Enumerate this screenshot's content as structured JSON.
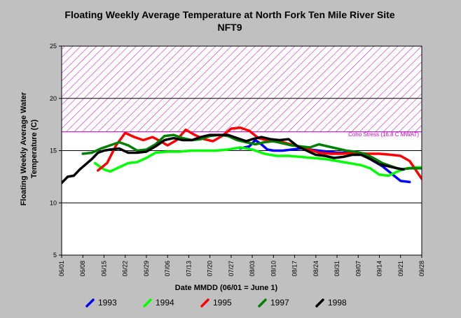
{
  "chart_data": {
    "type": "line",
    "title": "Floating Weekly Average Temperature at North Fork Ten Mile River Site",
    "subtitle": "NFT9",
    "xlabel": "Date MMDD (06/01 = June 1)",
    "ylabel": "Floating Weekly Average Water Temperature (C)",
    "ylabel_lines": [
      "Floating Weekly Average Water",
      "Temperature (C)"
    ],
    "ylim": [
      5,
      25
    ],
    "yticks": [
      5,
      10,
      15,
      20,
      25
    ],
    "grid_y": [
      10,
      15,
      20
    ],
    "xlim": [
      "06/01",
      "09/28"
    ],
    "xticks": [
      "06/01",
      "06/08",
      "06/15",
      "06/22",
      "06/29",
      "07/06",
      "07/13",
      "07/20",
      "07/27",
      "08/03",
      "08/10",
      "08/17",
      "08/24",
      "08/31",
      "09/07",
      "09/14",
      "09/21",
      "09/28"
    ],
    "threshold_band": {
      "label": "Coho Stress (16.8 C MWAT)",
      "from": 16.8,
      "to": 25,
      "color": "#cc00cc"
    },
    "legend_position": "bottom",
    "series": [
      {
        "name": "1993",
        "color": "#0000ff",
        "x": [
          "07/30",
          "08/02",
          "08/04",
          "08/06",
          "08/08",
          "08/10",
          "08/13",
          "08/16",
          "08/19",
          "08/22",
          "08/25",
          "08/28",
          "08/31",
          "09/03",
          "09/06",
          "09/09",
          "09/12",
          "09/15",
          "09/18",
          "09/21",
          "09/24"
        ],
        "y": [
          15.2,
          15.4,
          16.0,
          15.6,
          15.1,
          15.0,
          15.0,
          15.1,
          15.2,
          15.1,
          15.0,
          14.9,
          14.8,
          14.8,
          14.8,
          14.5,
          14.0,
          13.5,
          12.8,
          12.1,
          12.0
        ]
      },
      {
        "name": "1994",
        "color": "#00ff00",
        "x": [
          "06/12",
          "06/15",
          "06/17",
          "06/20",
          "06/23",
          "06/26",
          "06/29",
          "07/02",
          "07/06",
          "07/10",
          "07/14",
          "07/18",
          "07/22",
          "07/26",
          "07/30",
          "08/03",
          "08/07",
          "08/11",
          "08/15",
          "08/19",
          "08/23",
          "08/27",
          "08/31",
          "09/04",
          "09/08",
          "09/11",
          "09/14",
          "09/17",
          "09/20",
          "09/23",
          "09/26",
          "09/28"
        ],
        "y": [
          13.8,
          13.2,
          13.0,
          13.4,
          13.8,
          13.9,
          14.3,
          14.8,
          14.9,
          14.9,
          15.0,
          15.0,
          15.0,
          15.1,
          15.3,
          15.1,
          14.7,
          14.5,
          14.5,
          14.4,
          14.3,
          14.2,
          14.0,
          13.8,
          13.6,
          13.3,
          12.7,
          12.6,
          13.0,
          13.3,
          13.4,
          13.4
        ]
      },
      {
        "name": "1995",
        "color": "#ff0000",
        "x": [
          "06/13",
          "06/16",
          "06/19",
          "06/22",
          "06/25",
          "06/28",
          "07/01",
          "07/03",
          "07/06",
          "07/09",
          "07/12",
          "07/15",
          "07/18",
          "07/21",
          "07/24",
          "07/27",
          "07/30",
          "08/02",
          "08/05",
          "08/09",
          "08/13",
          "08/17",
          "08/21",
          "08/25",
          "08/29",
          "09/02",
          "09/06",
          "09/10",
          "09/14",
          "09/18",
          "09/21",
          "09/24",
          "09/28"
        ],
        "y": [
          13.1,
          13.8,
          15.5,
          16.7,
          16.3,
          16.0,
          16.3,
          16.0,
          15.5,
          16.0,
          17.0,
          16.5,
          16.1,
          15.9,
          16.4,
          17.1,
          17.2,
          16.9,
          16.2,
          15.9,
          15.8,
          15.5,
          15.2,
          14.8,
          14.7,
          14.7,
          14.8,
          14.7,
          14.7,
          14.6,
          14.5,
          14.0,
          12.3
        ]
      },
      {
        "name": "1997",
        "color": "#008000",
        "x": [
          "06/08",
          "06/11",
          "06/14",
          "06/17",
          "06/20",
          "06/23",
          "06/26",
          "06/29",
          "07/02",
          "07/05",
          "07/08",
          "07/11",
          "07/14",
          "07/17",
          "07/20",
          "07/23",
          "07/26",
          "07/29",
          "08/01",
          "08/04",
          "08/07",
          "08/10",
          "08/13",
          "08/16",
          "08/19",
          "08/22",
          "08/25",
          "08/28",
          "08/31",
          "09/03",
          "09/06",
          "09/09",
          "09/12",
          "09/15",
          "09/18",
          "09/21",
          "09/24",
          "09/28"
        ],
        "y": [
          14.7,
          14.8,
          15.2,
          15.5,
          15.8,
          15.5,
          15.0,
          15.1,
          15.6,
          16.4,
          16.5,
          16.2,
          16.0,
          16.1,
          16.4,
          16.5,
          16.4,
          16.0,
          15.8,
          15.6,
          15.8,
          15.9,
          15.7,
          15.5,
          15.4,
          15.3,
          15.6,
          15.4,
          15.2,
          15.0,
          14.9,
          14.7,
          14.3,
          13.8,
          13.5,
          13.2,
          13.3,
          13.3
        ]
      },
      {
        "name": "1998",
        "color": "#000000",
        "x": [
          "06/01",
          "06/03",
          "06/05",
          "06/07",
          "06/09",
          "06/11",
          "06/13",
          "06/15",
          "06/17",
          "06/20",
          "06/23",
          "06/26",
          "06/29",
          "07/02",
          "07/05",
          "07/08",
          "07/11",
          "07/14",
          "07/17",
          "07/20",
          "07/23",
          "07/26",
          "07/29",
          "08/01",
          "08/03",
          "08/06",
          "08/09",
          "08/12",
          "08/15",
          "08/18",
          "08/21",
          "08/24",
          "08/27",
          "08/30",
          "09/02",
          "09/05",
          "09/08",
          "09/11",
          "09/14",
          "09/17",
          "09/20",
          "09/22"
        ],
        "y": [
          11.9,
          12.5,
          12.6,
          13.2,
          13.7,
          14.2,
          14.8,
          15.0,
          15.1,
          15.2,
          14.8,
          14.8,
          14.9,
          15.4,
          16.0,
          16.2,
          16.0,
          16.0,
          16.3,
          16.5,
          16.5,
          16.5,
          16.2,
          15.9,
          16.1,
          16.3,
          16.1,
          16.0,
          16.1,
          15.4,
          15.0,
          14.6,
          14.5,
          14.3,
          14.4,
          14.6,
          14.6,
          14.2,
          13.7,
          13.5,
          13.3,
          13.2
        ]
      }
    ]
  }
}
